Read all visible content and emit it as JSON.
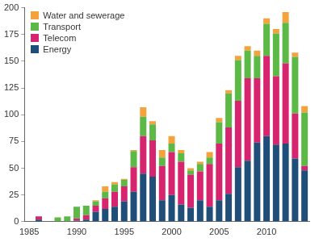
{
  "chart_data": {
    "type": "bar",
    "stacked": true,
    "grid": false,
    "legend": "upper left",
    "categories": [
      "1985",
      null,
      null,
      null,
      null,
      "1990",
      null,
      null,
      null,
      null,
      "1995",
      null,
      null,
      null,
      null,
      "2000",
      null,
      null,
      null,
      null,
      "2005",
      null,
      null,
      null,
      null,
      "2010",
      null,
      null,
      null,
      null
    ],
    "series": [
      {
        "name": "Energy",
        "color": "#1f4e79",
        "values": [
          0,
          2,
          0,
          0,
          0,
          1,
          2,
          9,
          12,
          14,
          19,
          28,
          45,
          42,
          20,
          25,
          16,
          13,
          20,
          14,
          20,
          26,
          51,
          57,
          74,
          80,
          72,
          73,
          59,
          48
        ]
      },
      {
        "name": "Telecom",
        "color": "#d6246e",
        "values": [
          0,
          3,
          0,
          0,
          0,
          2,
          4,
          6,
          10,
          14,
          14,
          23,
          35,
          34,
          32,
          40,
          40,
          31,
          27,
          40,
          53,
          62,
          62,
          77,
          60,
          75,
          64,
          75,
          42,
          4
        ]
      },
      {
        "name": "Transport",
        "color": "#5cb946",
        "values": [
          0,
          0,
          0,
          4,
          5,
          11,
          9,
          4,
          6,
          7,
          6,
          15,
          18,
          15,
          8,
          8,
          8,
          4,
          7,
          6,
          20,
          32,
          38,
          26,
          21,
          30,
          40,
          38,
          53,
          50
        ]
      },
      {
        "name": "Water and sewerage",
        "color": "#f4a23c",
        "values": [
          0,
          0,
          0,
          0,
          0,
          0,
          0,
          1,
          5,
          2,
          1,
          1,
          9,
          3,
          7,
          7,
          3,
          2,
          2,
          5,
          4,
          3,
          4,
          4,
          5,
          5,
          4,
          10,
          4,
          6
        ]
      }
    ],
    "ylim": [
      0,
      200
    ],
    "yticks": [
      0,
      25,
      50,
      75,
      100,
      125,
      150,
      175,
      200
    ]
  }
}
